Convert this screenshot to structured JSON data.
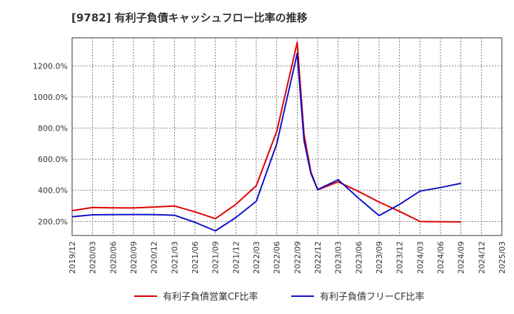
{
  "chart_data": {
    "type": "line",
    "title": "[9782]  有利子負債キャッシュフロー比率の推移",
    "xlabel": "",
    "ylabel": "",
    "ylim": [
      110,
      1380
    ],
    "x_ticks": [
      "2019/12",
      "2020/03",
      "2020/06",
      "2020/09",
      "2020/12",
      "2021/03",
      "2021/06",
      "2021/09",
      "2021/12",
      "2022/03",
      "2022/06",
      "2022/09",
      "2022/12",
      "2023/03",
      "2023/06",
      "2023/09",
      "2023/12",
      "2024/03",
      "2024/06",
      "2024/09",
      "2024/12",
      "2025/03"
    ],
    "y_ticks": [
      200,
      400,
      600,
      800,
      1000,
      1200
    ],
    "y_tick_labels": [
      "200.0%",
      "400.0%",
      "600.0%",
      "800.0%",
      "1000.0%",
      "1200.0%"
    ],
    "grid": true,
    "legend_position": "bottom-center",
    "series": [
      {
        "name": "有利子負債営業CF比率",
        "color": "#e00000",
        "points": [
          {
            "x": "2019/12",
            "y": 270
          },
          {
            "x": "2020/03",
            "y": 290
          },
          {
            "x": "2020/06",
            "y": 288
          },
          {
            "x": "2020/09",
            "y": 287
          },
          {
            "x": "2020/12",
            "y": 293
          },
          {
            "x": "2021/03",
            "y": 300
          },
          {
            "x": "2021/06",
            "y": 262
          },
          {
            "x": "2021/09",
            "y": 218
          },
          {
            "x": "2021/12",
            "y": 310
          },
          {
            "x": "2022/03",
            "y": 430
          },
          {
            "x": "2022/06",
            "y": 780
          },
          {
            "x": "2022/09",
            "y": 1350
          },
          {
            "x": "2022/10",
            "y": 760
          },
          {
            "x": "2022/11",
            "y": 520
          },
          {
            "x": "2022/12",
            "y": 403
          },
          {
            "x": "2023/03",
            "y": 455
          },
          {
            "x": "2023/06",
            "y": 393
          },
          {
            "x": "2023/09",
            "y": 325
          },
          {
            "x": "2023/12",
            "y": 265
          },
          {
            "x": "2024/03",
            "y": 200
          },
          {
            "x": "2024/06",
            "y": 198
          },
          {
            "x": "2024/09",
            "y": 197
          }
        ]
      },
      {
        "name": "有利子負債フリーCF比率",
        "color": "#1010c8",
        "points": [
          {
            "x": "2019/12",
            "y": 230
          },
          {
            "x": "2020/03",
            "y": 243
          },
          {
            "x": "2020/06",
            "y": 244
          },
          {
            "x": "2020/09",
            "y": 245
          },
          {
            "x": "2020/12",
            "y": 244
          },
          {
            "x": "2021/03",
            "y": 240
          },
          {
            "x": "2021/06",
            "y": 195
          },
          {
            "x": "2021/09",
            "y": 140
          },
          {
            "x": "2021/12",
            "y": 225
          },
          {
            "x": "2022/03",
            "y": 330
          },
          {
            "x": "2022/06",
            "y": 700
          },
          {
            "x": "2022/09",
            "y": 1280
          },
          {
            "x": "2022/10",
            "y": 720
          },
          {
            "x": "2022/11",
            "y": 510
          },
          {
            "x": "2022/12",
            "y": 405
          },
          {
            "x": "2023/03",
            "y": 468
          },
          {
            "x": "2023/06",
            "y": 350
          },
          {
            "x": "2023/09",
            "y": 238
          },
          {
            "x": "2023/12",
            "y": 310
          },
          {
            "x": "2024/03",
            "y": 395
          },
          {
            "x": "2024/06",
            "y": 418
          },
          {
            "x": "2024/09",
            "y": 445
          }
        ]
      }
    ]
  }
}
